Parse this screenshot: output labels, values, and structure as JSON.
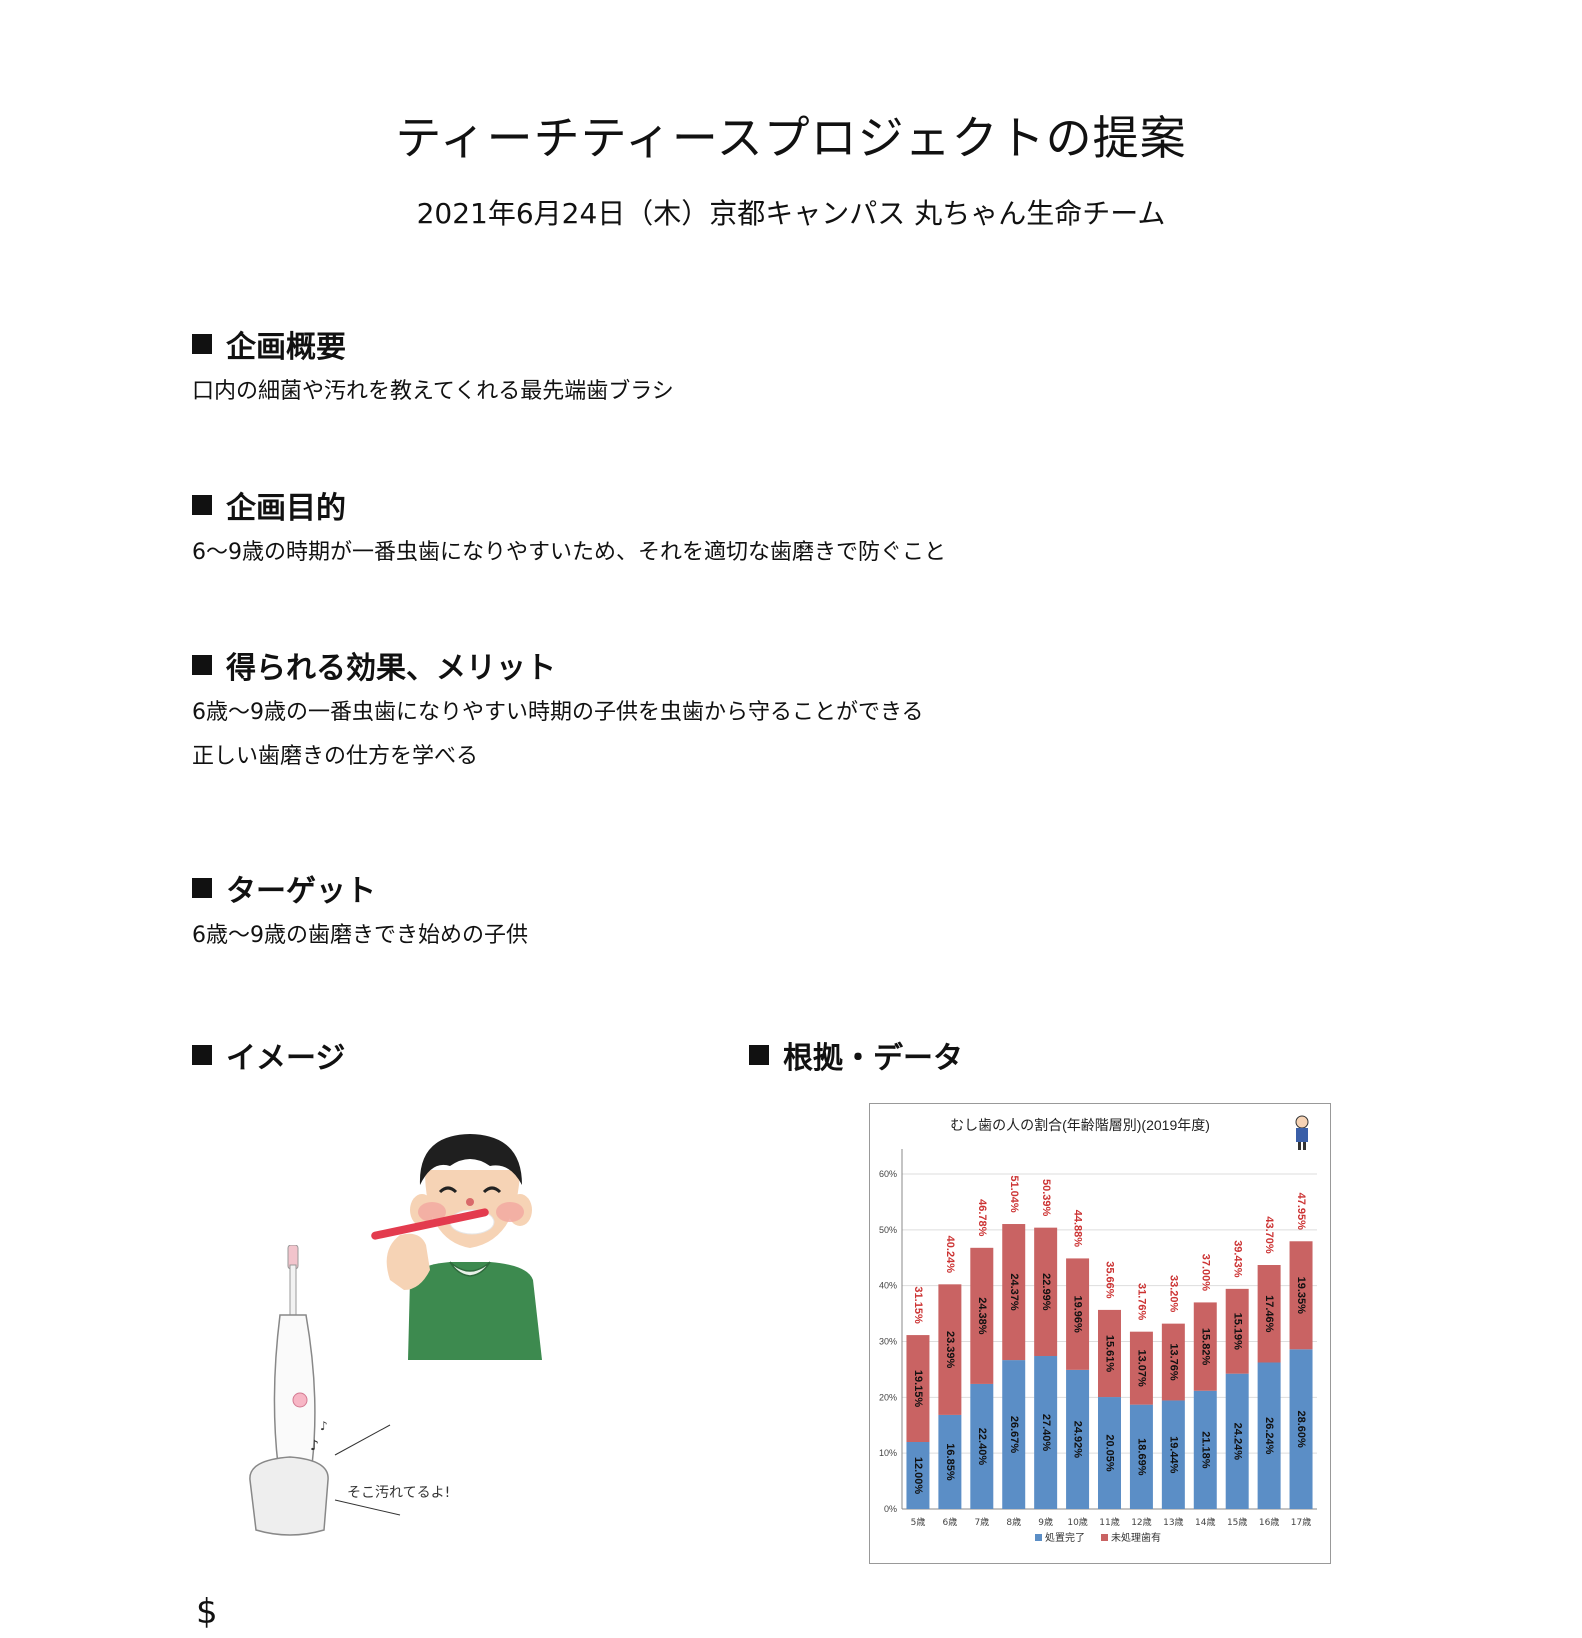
{
  "header": {
    "title": "ティーチティースプロジェクトの提案",
    "subtitle": "2021年6月24日（木）京都キャンパス 丸ちゃん生命チーム"
  },
  "sections": {
    "overview": {
      "heading": "企画概要",
      "lines": [
        "口内の細菌や汚れを教えてくれる最先端歯ブラシ"
      ]
    },
    "purpose": {
      "heading": "企画目的",
      "lines": [
        "6〜9歳の時期が一番虫歯になりやすいため、それを適切な歯磨きで防ぐこと"
      ]
    },
    "effects": {
      "heading": "得られる効果、メリット",
      "lines": [
        "6歳〜9歳の一番虫歯になりやすい時期の子供を虫歯から守ることができる",
        "正しい歯磨きの仕方を学べる"
      ]
    },
    "target": {
      "heading": "ターゲット",
      "lines": [
        "6歳〜9歳の歯磨きでき始めの子供"
      ]
    },
    "image": {
      "heading": "イメージ",
      "speech": "そこ汚れてるよ!"
    },
    "evidence": {
      "heading": "根拠・データ"
    }
  },
  "footer": {
    "symbol": "$"
  },
  "chart_data": {
    "type": "bar",
    "stacked": true,
    "title": "むし歯の人の割合(年齢階層別)(2019年度)",
    "categories": [
      "5歳",
      "6歳",
      "7歳",
      "8歳",
      "9歳",
      "10歳",
      "11歳",
      "12歳",
      "13歳",
      "14歳",
      "15歳",
      "16歳",
      "17歳"
    ],
    "series": [
      {
        "name": "処置完了",
        "color": "#5b8ec6",
        "values": [
          12.0,
          16.85,
          22.4,
          26.67,
          27.4,
          24.92,
          20.05,
          18.69,
          19.44,
          21.18,
          24.24,
          26.24,
          28.6
        ],
        "labels": [
          "12.00%",
          "16.85%",
          "22.40%",
          "26.67%",
          "27.40%",
          "24.92%",
          "20.05%",
          "18.69%",
          "19.44%",
          "21.18%",
          "24.24%",
          "26.24%",
          "28.60%"
        ]
      },
      {
        "name": "未処理歯有",
        "color": "#c96363",
        "values": [
          19.15,
          23.39,
          24.38,
          24.37,
          22.99,
          19.96,
          15.61,
          13.07,
          13.76,
          15.82,
          15.19,
          17.46,
          19.35
        ],
        "labels": [
          "19.15%",
          "23.39%",
          "24.38%",
          "24.37%",
          "22.99%",
          "19.96%",
          "15.61%",
          "13.07%",
          "13.76%",
          "15.82%",
          "15.19%",
          "17.46%",
          "19.35%"
        ]
      }
    ],
    "totals": [
      "31.15%",
      "40.24%",
      "46.78%",
      "51.04%",
      "50.39%",
      "44.88%",
      "35.66%",
      "31.76%",
      "33.20%",
      "37.00%",
      "39.43%",
      "43.70%",
      "47.95%"
    ],
    "ylim": [
      0,
      60
    ],
    "yticks": [
      "0%",
      "10%",
      "20%",
      "30%",
      "40%",
      "50%",
      "60%"
    ],
    "grid": true,
    "legend": "bottom",
    "total_label_color": "#cc3333"
  }
}
